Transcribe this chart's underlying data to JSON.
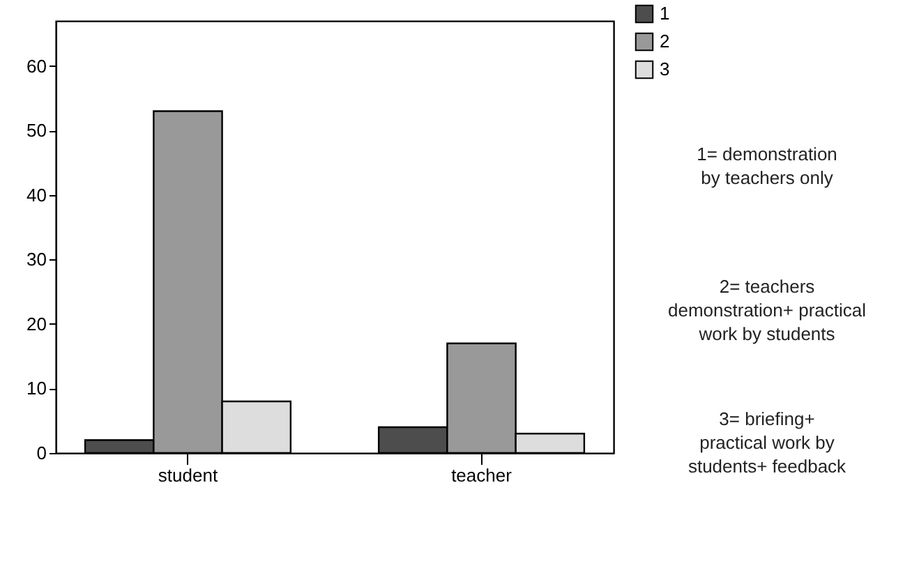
{
  "chart_data": {
    "type": "bar",
    "categories": [
      "student",
      "teacher"
    ],
    "series": [
      {
        "name": "1",
        "color": "#4d4d4d",
        "values": [
          2,
          4
        ]
      },
      {
        "name": "2",
        "color": "#999999",
        "values": [
          53,
          17
        ]
      },
      {
        "name": "3",
        "color": "#dddddd",
        "values": [
          8,
          3
        ]
      }
    ],
    "ylim": [
      0,
      67
    ],
    "yticks": [
      0,
      10,
      20,
      30,
      40,
      50,
      60
    ],
    "grid": false,
    "legend": "top right",
    "annotations": [
      "1= demonstration\nby teachers only",
      "2= teachers\ndemonstration+ practical\nwork by students",
      "3= briefing+\npractical work by\nstudents+ feedback"
    ]
  }
}
